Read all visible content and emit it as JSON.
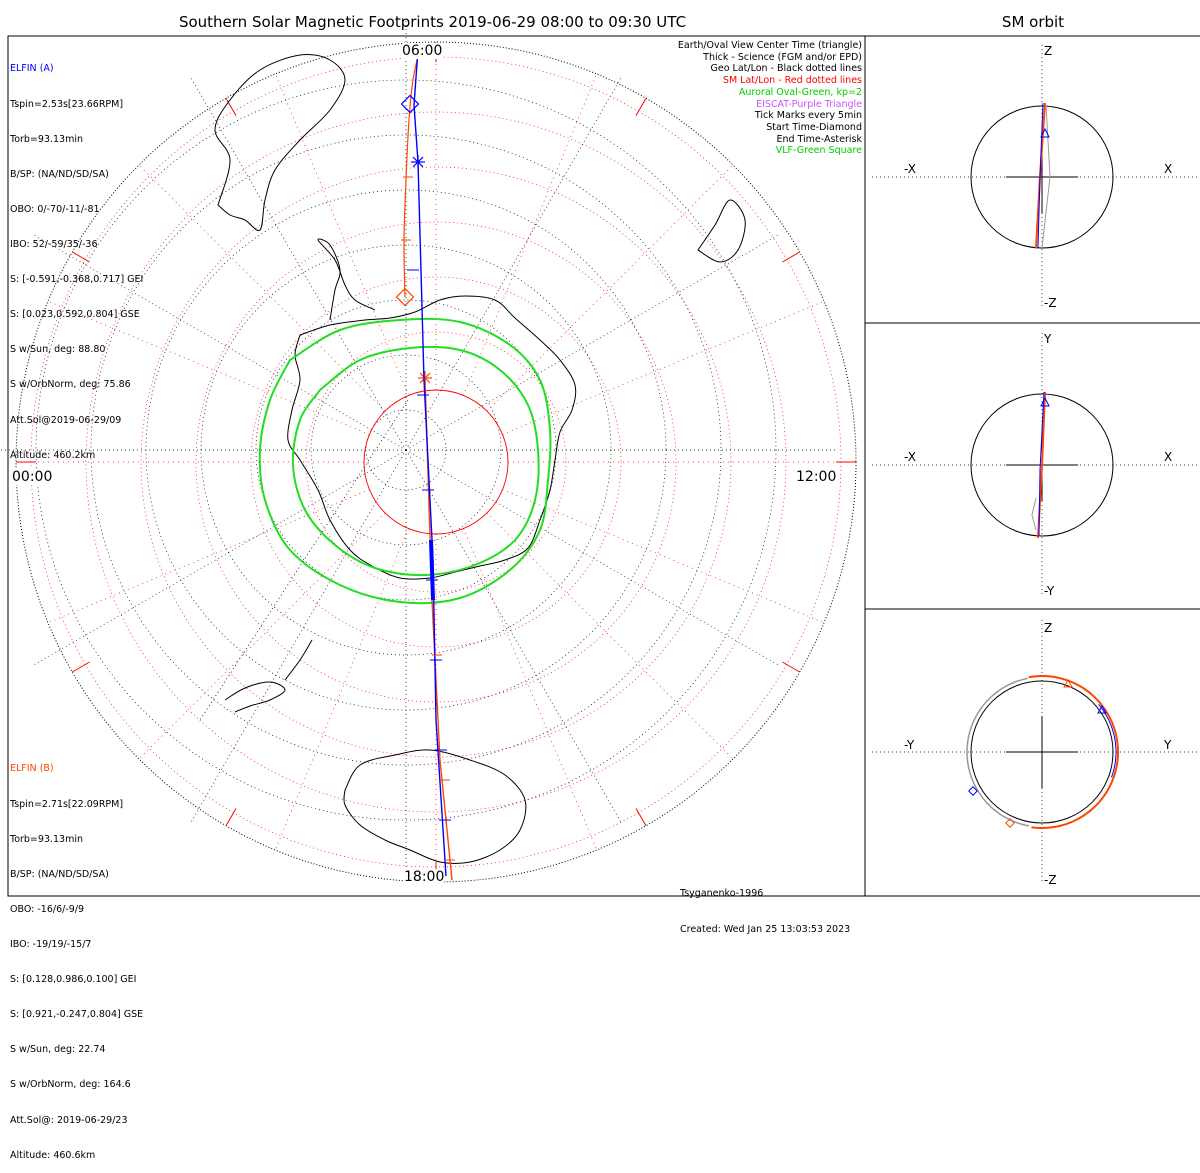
{
  "main_title": "Southern Solar Magnetic Footprints 2019-06-29 08:00 to 09:30 UTC",
  "orbit_title": "SM orbit",
  "time_labels": {
    "top": "06:00",
    "left": "00:00",
    "right": "12:00",
    "bottom": "18:00"
  },
  "elfin_a": {
    "name": "ELFIN (A)",
    "lines": [
      "Tspin=2.53s[23.66RPM]",
      "Torb=93.13min",
      "B/SP: (NA/ND/SD/SA)",
      "OBO: 0/-70/-11/-81",
      "IBO: 52/-59/35/-36",
      "S: [-0.591,-0.368,0.717] GEI",
      "S: [0.023,0.592,0.804] GSE",
      "S w/Sun, deg: 88.80",
      "S w/OrbNorm, deg: 75.86",
      "Att.Sol@2019-06-29/09",
      "Altitude: 460.2km"
    ],
    "color": "#0000ff"
  },
  "elfin_b": {
    "name": "ELFIN (B)",
    "lines": [
      "Tspin=2.71s[22.09RPM]",
      "Torb=93.13min",
      "B/SP: (NA/ND/SD/SA)",
      "OBO: -16/6/-9/9",
      "IBO: -19/19/-15/7",
      "S: [0.128,0.986,0.100] GEI",
      "S: [0.921,-0.247,0.804] GSE",
      "S w/Sun, deg: 22.74",
      "S w/OrbNorm, deg: 164.6",
      "Att.Sol@: 2019-06-29/23",
      "Altitude: 460.6km"
    ],
    "color": "#ff4500"
  },
  "legend": [
    {
      "text": "Earth/Oval View Center Time (triangle)",
      "color": "#000000"
    },
    {
      "text": "Thick - Science (FGM and/or EPD)",
      "color": "#000000"
    },
    {
      "text": "Geo Lat/Lon - Black dotted lines",
      "color": "#000000"
    },
    {
      "text": "SM Lat/Lon - Red dotted lines",
      "color": "#ff0000"
    },
    {
      "text": "Auroral Oval-Green, kp=2",
      "color": "#00cc00"
    },
    {
      "text": "EISCAT-Purple Triangle",
      "color": "#cc55ff"
    },
    {
      "text": "Tick Marks every 5min",
      "color": "#000000"
    },
    {
      "text": "Start Time-Diamond",
      "color": "#000000"
    },
    {
      "text": "End Time-Asterisk",
      "color": "#000000"
    },
    {
      "text": "VLF-Green Square",
      "color": "#00cc00"
    }
  ],
  "credits": {
    "model": "Tsyganenko-1996",
    "created": "Created: Wed Jan 25 13:03:53 2023"
  },
  "panels": [
    {
      "top": "Z",
      "bottom": "-Z",
      "left": "-X",
      "right": "X"
    },
    {
      "top": "Y",
      "bottom": "-Y",
      "left": "-X",
      "right": "X"
    },
    {
      "top": "Z",
      "bottom": "-Z",
      "left": "-Y",
      "right": "Y"
    }
  ]
}
